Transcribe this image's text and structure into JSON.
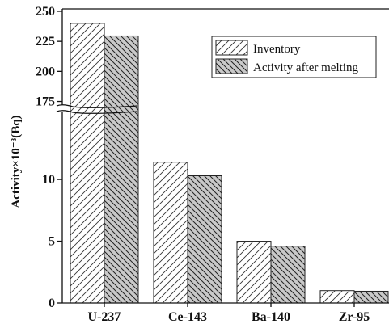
{
  "chart_data": {
    "type": "bar",
    "categories": [
      "U-237",
      "Ce-143",
      "Ba-140",
      "Zr-95"
    ],
    "series": [
      {
        "name": "Inventory",
        "values": [
          240,
          11.4,
          5.0,
          1.0
        ]
      },
      {
        "name": "Activity after melting",
        "values": [
          229.5,
          10.3,
          4.6,
          0.95
        ]
      }
    ],
    "ylabel": "Activity×10⁻³(Bq)",
    "y_axis_break": {
      "lower_range": [
        0,
        15.5
      ],
      "upper_range": [
        172,
        252
      ],
      "lower_ticks": [
        0,
        5,
        10
      ],
      "upper_ticks": [
        175,
        200,
        225,
        250
      ]
    },
    "legend_position": "top-right",
    "grid": false,
    "series_fill": [
      "hatch-forward",
      "hatch-backward-gray"
    ]
  }
}
